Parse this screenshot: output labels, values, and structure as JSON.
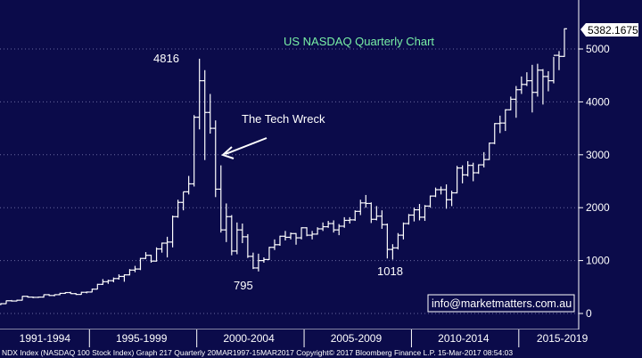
{
  "chart_data": {
    "type": "ohlc",
    "title": "US NASDAQ Quarterly Chart",
    "last_price_label": "5382.1675",
    "y_ticks": [
      "0",
      "1000",
      "2000",
      "3000",
      "4000",
      "5000"
    ],
    "y_tick_values": [
      0,
      1000,
      2000,
      3000,
      4000,
      5000
    ],
    "ylim": [
      -200,
      5600
    ],
    "x_ticks": [
      "1991-1994",
      "1995-1999",
      "2000-2004",
      "2005-2009",
      "2010-2014",
      "2015-2019"
    ],
    "x_range": [
      1990.75,
      2019.5
    ],
    "annotations": [
      {
        "text": "4816",
        "value": 4816,
        "time": 1999.75
      },
      {
        "text": "795",
        "value": 795,
        "time": 2002.75
      },
      {
        "text": "1018",
        "value": 1018,
        "time": 2008.75
      },
      {
        "text": "The Tech Wreck"
      }
    ],
    "watermark": "info@marketmatters.com.au",
    "footer": "NDX Index (NASDAQ 100 Stock Index) Graph 217  Quarterly 20MAR1997-15MAR2017   Copyright© 2017 Bloomberg Finance L.P.     15-Mar-2017 08:54:03",
    "colors": {
      "background": "#0b0b4a",
      "bars": "#ffffff",
      "title": "#79f0a6",
      "gridline": "#6a6aa0"
    },
    "grid": "horizontal-dotted",
    "series": [
      {
        "bars": [
          [
            1990.75,
            170,
            195,
            160,
            185
          ],
          [
            1991.0,
            185,
            245,
            180,
            240
          ],
          [
            1991.25,
            240,
            255,
            225,
            235
          ],
          [
            1991.5,
            235,
            260,
            230,
            250
          ],
          [
            1991.75,
            250,
            330,
            245,
            325
          ],
          [
            1992.0,
            325,
            335,
            300,
            310
          ],
          [
            1992.25,
            310,
            320,
            290,
            305
          ],
          [
            1992.5,
            305,
            320,
            295,
            310
          ],
          [
            1992.75,
            310,
            360,
            300,
            355
          ],
          [
            1993.0,
            355,
            365,
            330,
            340
          ],
          [
            1993.25,
            340,
            360,
            325,
            355
          ],
          [
            1993.5,
            355,
            390,
            345,
            380
          ],
          [
            1993.75,
            380,
            400,
            370,
            395
          ],
          [
            1994.0,
            395,
            410,
            370,
            375
          ],
          [
            1994.25,
            375,
            385,
            350,
            360
          ],
          [
            1994.5,
            360,
            410,
            355,
            400
          ],
          [
            1994.75,
            400,
            415,
            380,
            405
          ],
          [
            1995.0,
            405,
            470,
            400,
            460
          ],
          [
            1995.25,
            460,
            560,
            455,
            550
          ],
          [
            1995.5,
            550,
            650,
            540,
            600
          ],
          [
            1995.75,
            600,
            640,
            560,
            620
          ],
          [
            1996.0,
            620,
            680,
            590,
            660
          ],
          [
            1996.25,
            660,
            740,
            640,
            700
          ],
          [
            1996.5,
            700,
            740,
            600,
            730
          ],
          [
            1996.75,
            730,
            840,
            720,
            820
          ],
          [
            1997.0,
            820,
            900,
            780,
            840
          ],
          [
            1997.25,
            840,
            1050,
            820,
            1040
          ],
          [
            1997.5,
            1040,
            1160,
            1030,
            1100
          ],
          [
            1997.75,
            1100,
            1110,
            960,
            990
          ],
          [
            1998.0,
            990,
            1250,
            980,
            1220
          ],
          [
            1998.25,
            1220,
            1340,
            1150,
            1330
          ],
          [
            1998.5,
            1330,
            1450,
            1060,
            1350
          ],
          [
            1998.75,
            1350,
            1850,
            1250,
            1830
          ],
          [
            1999.0,
            1830,
            2150,
            1810,
            2100
          ],
          [
            1999.25,
            2100,
            2300,
            1950,
            2300
          ],
          [
            1999.5,
            2300,
            2600,
            2250,
            2450
          ],
          [
            1999.75,
            2450,
            3750,
            2400,
            3710
          ],
          [
            2000.0,
            3710,
            4816,
            3480,
            4400
          ],
          [
            2000.25,
            4400,
            4600,
            2900,
            3800
          ],
          [
            2000.5,
            3800,
            4150,
            3400,
            3500
          ],
          [
            2000.75,
            3500,
            3650,
            2200,
            2350
          ],
          [
            2001.0,
            2350,
            2800,
            1530,
            1580
          ],
          [
            2001.25,
            1580,
            2080,
            1350,
            1830
          ],
          [
            2001.5,
            1830,
            1860,
            1100,
            1180
          ],
          [
            2001.75,
            1180,
            1720,
            1120,
            1580
          ],
          [
            2002.0,
            1580,
            1700,
            1330,
            1450
          ],
          [
            2002.25,
            1450,
            1500,
            1050,
            1080
          ],
          [
            2002.5,
            1080,
            1150,
            840,
            860
          ],
          [
            2002.75,
            860,
            1130,
            795,
            1000
          ],
          [
            2003.0,
            1000,
            1060,
            960,
            1020
          ],
          [
            2003.25,
            1020,
            1260,
            1010,
            1250
          ],
          [
            2003.5,
            1250,
            1400,
            1200,
            1300
          ],
          [
            2003.75,
            1300,
            1470,
            1280,
            1460
          ],
          [
            2004.0,
            1460,
            1560,
            1380,
            1440
          ],
          [
            2004.25,
            1440,
            1530,
            1400,
            1510
          ],
          [
            2004.5,
            1510,
            1520,
            1300,
            1430
          ],
          [
            2004.75,
            1430,
            1630,
            1400,
            1620
          ],
          [
            2005.0,
            1620,
            1630,
            1460,
            1480
          ],
          [
            2005.25,
            1480,
            1560,
            1400,
            1500
          ],
          [
            2005.5,
            1500,
            1630,
            1490,
            1600
          ],
          [
            2005.75,
            1600,
            1720,
            1560,
            1640
          ],
          [
            2006.0,
            1640,
            1750,
            1620,
            1700
          ],
          [
            2006.25,
            1700,
            1760,
            1530,
            1580
          ],
          [
            2006.5,
            1580,
            1690,
            1480,
            1650
          ],
          [
            2006.75,
            1650,
            1820,
            1620,
            1760
          ],
          [
            2007.0,
            1760,
            1820,
            1700,
            1770
          ],
          [
            2007.25,
            1770,
            1950,
            1750,
            1930
          ],
          [
            2007.5,
            1930,
            2150,
            1860,
            2090
          ],
          [
            2007.75,
            2090,
            2240,
            2000,
            2080
          ],
          [
            2008.0,
            2080,
            2100,
            1710,
            1780
          ],
          [
            2008.25,
            1780,
            2030,
            1760,
            1840
          ],
          [
            2008.5,
            1840,
            1950,
            1600,
            1680
          ],
          [
            2008.75,
            1680,
            1700,
            1040,
            1210
          ],
          [
            2009.0,
            1210,
            1310,
            1018,
            1240
          ],
          [
            2009.25,
            1240,
            1520,
            1210,
            1480
          ],
          [
            2009.5,
            1480,
            1720,
            1400,
            1700
          ],
          [
            2009.75,
            1700,
            1880,
            1680,
            1860
          ],
          [
            2010.0,
            1860,
            2000,
            1740,
            1960
          ],
          [
            2010.25,
            1960,
            2070,
            1760,
            1820
          ],
          [
            2010.5,
            1820,
            2050,
            1750,
            2030
          ],
          [
            2010.75,
            2030,
            2230,
            2000,
            2220
          ],
          [
            2011.0,
            2220,
            2380,
            2200,
            2340
          ],
          [
            2011.25,
            2340,
            2400,
            2250,
            2340
          ],
          [
            2011.5,
            2340,
            2440,
            1980,
            2150
          ],
          [
            2011.75,
            2150,
            2320,
            2030,
            2280
          ],
          [
            2012.0,
            2280,
            2790,
            2270,
            2750
          ],
          [
            2012.25,
            2750,
            2800,
            2460,
            2620
          ],
          [
            2012.5,
            2620,
            2880,
            2590,
            2800
          ],
          [
            2012.75,
            2800,
            2850,
            2500,
            2660
          ],
          [
            2013.0,
            2660,
            2820,
            2640,
            2810
          ],
          [
            2013.25,
            2810,
            3050,
            2760,
            2910
          ],
          [
            2013.5,
            2910,
            3230,
            2900,
            3220
          ],
          [
            2013.75,
            3220,
            3600,
            3200,
            3590
          ],
          [
            2014.0,
            3590,
            3740,
            3410,
            3600
          ],
          [
            2014.25,
            3600,
            3860,
            3450,
            3850
          ],
          [
            2014.5,
            3850,
            4100,
            3840,
            4050
          ],
          [
            2014.75,
            4050,
            4300,
            3700,
            4230
          ],
          [
            2015.0,
            4230,
            4480,
            4150,
            4330
          ],
          [
            2015.25,
            4330,
            4560,
            4300,
            4400
          ],
          [
            2015.5,
            4400,
            4700,
            3800,
            4180
          ],
          [
            2015.75,
            4180,
            4720,
            4100,
            4600
          ],
          [
            2016.0,
            4600,
            4620,
            3950,
            4480
          ],
          [
            2016.25,
            4480,
            4580,
            4200,
            4400
          ],
          [
            2016.5,
            4400,
            4850,
            4350,
            4880
          ],
          [
            2016.75,
            4880,
            4960,
            4600,
            4860
          ],
          [
            2017.0,
            4860,
            5390,
            4850,
            5382
          ]
        ]
      }
    ]
  }
}
